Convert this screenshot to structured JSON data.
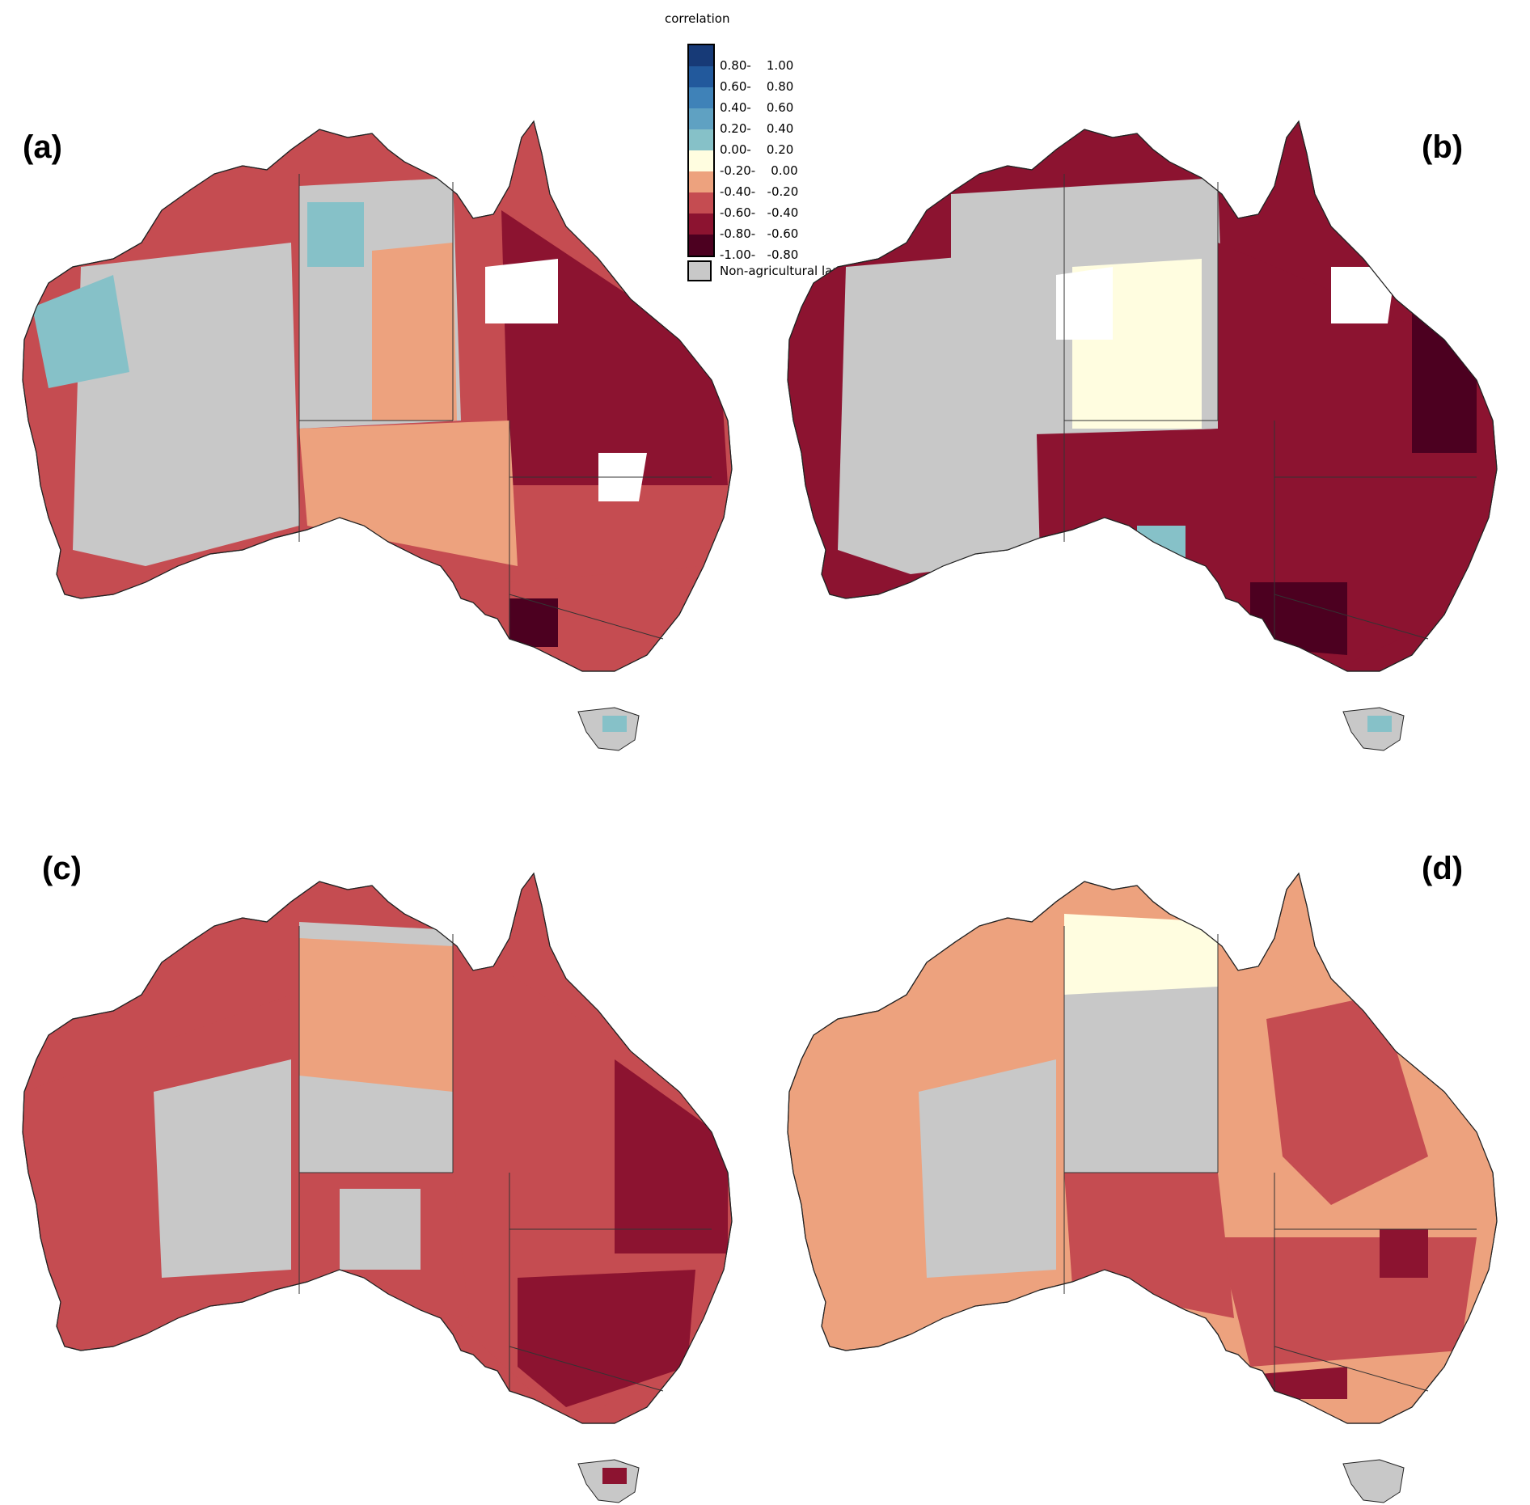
{
  "legend": {
    "title": "correlation",
    "classes": [
      {
        "label": "0.80-    1.00",
        "color": "#173a77"
      },
      {
        "label": "0.60-    0.80",
        "color": "#22599c"
      },
      {
        "label": "0.40-    0.60",
        "color": "#3f82b8"
      },
      {
        "label": "0.20-    0.40",
        "color": "#5fa1c2"
      },
      {
        "label": "0.00-    0.20",
        "color": "#86c1c8"
      },
      {
        "label": "-0.20-    0.00",
        "color": "#fffde0"
      },
      {
        "label": "-0.40-   -0.20",
        "color": "#eda27e"
      },
      {
        "label": "-0.60-   -0.40",
        "color": "#c54c51"
      },
      {
        "label": "-0.80-   -0.60",
        "color": "#8c1330"
      },
      {
        "label": "-1.00-   -0.80",
        "color": "#4c0020"
      }
    ],
    "nonag": {
      "label": "Non-agricultural land",
      "color": "#c8c8c8"
    }
  },
  "panels": [
    {
      "label": "(a)",
      "dominant": "#c54c51"
    },
    {
      "label": "(b)",
      "dominant": "#8c1330"
    },
    {
      "label": "(c)",
      "dominant": "#c54c51"
    },
    {
      "label": "(d)",
      "dominant": "#eda27e"
    }
  ]
}
